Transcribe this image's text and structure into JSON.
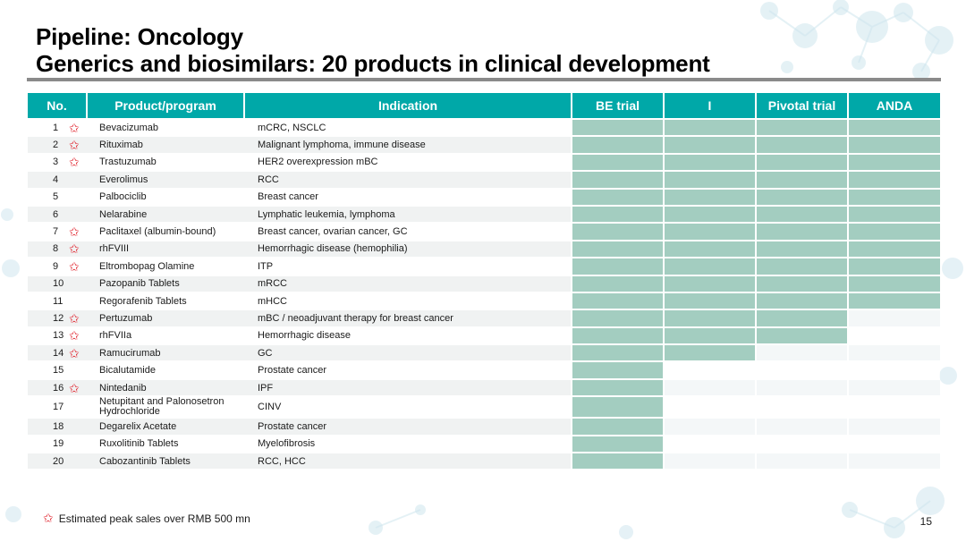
{
  "title_line1": "Pipeline: Oncology",
  "title_line2": "Generics and biosimilars: 20 products in clinical development",
  "headers": {
    "no": "No.",
    "product": "Product/program",
    "indication": "Indication",
    "phases": [
      "BE trial",
      "I",
      "Pivotal trial",
      "ANDA"
    ]
  },
  "rows": [
    {
      "no": "1",
      "star": true,
      "product": "Bevacizumab",
      "indication": "mCRC, NSCLC",
      "phase_reached": 4
    },
    {
      "no": "2",
      "star": true,
      "product": "Rituximab",
      "indication": "Malignant lymphoma, immune disease",
      "phase_reached": 4
    },
    {
      "no": "3",
      "star": true,
      "product": "Trastuzumab",
      "indication": "HER2 overexpression mBC",
      "phase_reached": 4
    },
    {
      "no": "4",
      "star": false,
      "product": "Everolimus",
      "indication": "RCC",
      "phase_reached": 4
    },
    {
      "no": "5",
      "star": false,
      "product": "Palbociclib",
      "indication": "Breast cancer",
      "phase_reached": 4
    },
    {
      "no": "6",
      "star": false,
      "product": "Nelarabine",
      "indication": "Lymphatic leukemia, lymphoma",
      "phase_reached": 4
    },
    {
      "no": "7",
      "star": true,
      "product": "Paclitaxel (albumin-bound)",
      "indication": "Breast cancer, ovarian cancer, GC",
      "phase_reached": 4
    },
    {
      "no": "8",
      "star": true,
      "product": "rhFVIII",
      "indication": "Hemorrhagic disease (hemophilia)",
      "phase_reached": 4
    },
    {
      "no": "9",
      "star": true,
      "product": "Eltrombopag Olamine",
      "indication": "ITP",
      "phase_reached": 4
    },
    {
      "no": "10",
      "star": false,
      "product": "Pazopanib Tablets",
      "indication": "mRCC",
      "phase_reached": 4
    },
    {
      "no": "11",
      "star": false,
      "product": "Regorafenib Tablets",
      "indication": "mHCC",
      "phase_reached": 4
    },
    {
      "no": "12",
      "star": true,
      "product": "Pertuzumab",
      "indication": "mBC / neoadjuvant therapy for breast cancer",
      "phase_reached": 3
    },
    {
      "no": "13",
      "star": true,
      "product": "rhFVIIa",
      "indication": "Hemorrhagic disease",
      "phase_reached": 3
    },
    {
      "no": "14",
      "star": true,
      "product": "Ramucirumab",
      "indication": "GC",
      "phase_reached": 2
    },
    {
      "no": "15",
      "star": false,
      "product": "Bicalutamide",
      "indication": "Prostate cancer",
      "phase_reached": 1
    },
    {
      "no": "16",
      "star": true,
      "product": "Nintedanib",
      "indication": "IPF",
      "phase_reached": 1
    },
    {
      "no": "17",
      "star": false,
      "product": "Netupitant and Palonosetron Hydrochloride",
      "indication": "CINV",
      "phase_reached": 1
    },
    {
      "no": "18",
      "star": false,
      "product": "Degarelix Acetate",
      "indication": "Prostate cancer",
      "phase_reached": 1
    },
    {
      "no": "19",
      "star": false,
      "product": "Ruxolitinib Tablets",
      "indication": "Myelofibrosis",
      "phase_reached": 1
    },
    {
      "no": "20",
      "star": false,
      "product": "Cabozantinib Tablets",
      "indication": "RCC, HCC",
      "phase_reached": 1
    }
  ],
  "footnote": "Estimated peak sales over RMB 500 mn",
  "page_number": "15",
  "star_icon": "star-icon",
  "colors": {
    "header": "#00a8a8",
    "bar": "#a3cdc0",
    "star": "#e0202a"
  }
}
